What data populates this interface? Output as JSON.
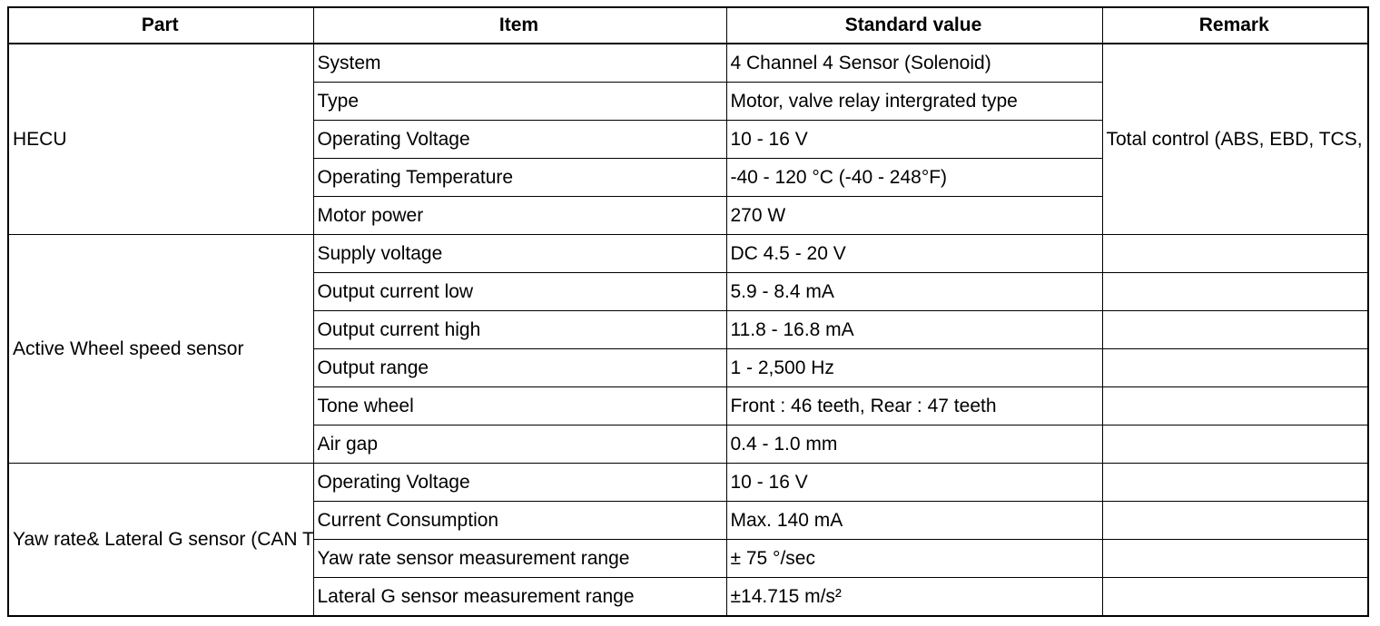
{
  "headers": {
    "part": "Part",
    "item": "Item",
    "standard_value": "Standard value",
    "remark": "Remark"
  },
  "groups": [
    {
      "part": "HECU",
      "remark": "Total control\n(ABS, EBD, TCS, ESC)",
      "rows": [
        {
          "item": "System",
          "value": "4 Channel 4 Sensor (Solenoid)"
        },
        {
          "item": "Type",
          "value": "Motor, valve relay intergrated type"
        },
        {
          "item": "Operating Voltage",
          "value": "10 - 16 V"
        },
        {
          "item": "Operating Temperature",
          "value": "-40 - 120 °C (-40 - 248°F)"
        },
        {
          "item": "Motor power",
          "value": "270 W"
        }
      ]
    },
    {
      "part": "Active Wheel speed sensor",
      "rows": [
        {
          "item": "Supply voltage",
          "value": "DC 4.5 - 20 V"
        },
        {
          "item": "Output current low",
          "value": "5.9 - 8.4 mA"
        },
        {
          "item": "Output current high",
          "value": "11.8 - 16.8 mA"
        },
        {
          "item": "Output range",
          "value": "1 - 2,500 Hz"
        },
        {
          "item": "Tone wheel",
          "value": "Front : 46 teeth, Rear : 47 teeth"
        },
        {
          "item": "Air gap",
          "value": "0.4 - 1.0 mm"
        }
      ]
    },
    {
      "part": "Yaw rate& Lateral G sensor\n(CAN TYPE)",
      "rows": [
        {
          "item": "Operating Voltage",
          "value": "10 - 16 V"
        },
        {
          "item": "Current Consumption",
          "value": "Max. 140 mA"
        },
        {
          "item": "Yaw rate sensor measurement range",
          "value": "± 75 °/sec"
        },
        {
          "item": "Lateral G sensor measurement range",
          "value": "±14.715 m/s²"
        }
      ]
    }
  ]
}
